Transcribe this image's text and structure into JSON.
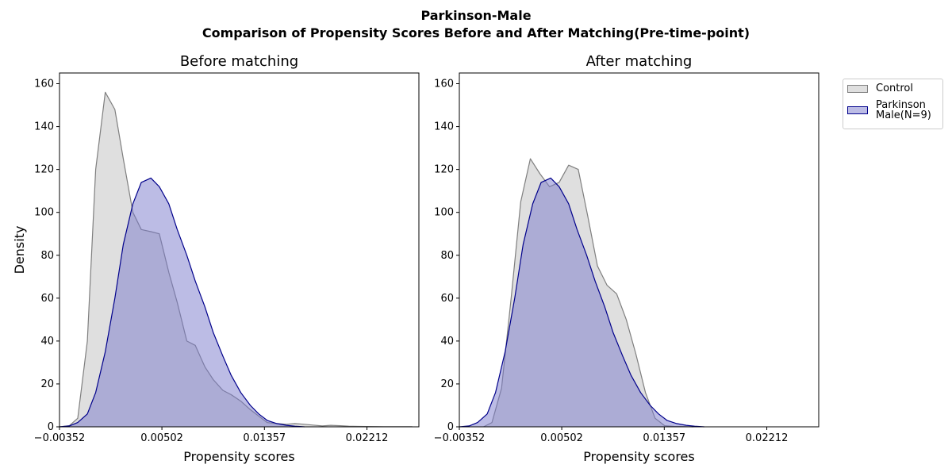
{
  "suptitle": [
    "Parkinson-Male",
    "Comparison of Propensity Scores Before and After Matching(Pre-time-point)"
  ],
  "colors": {
    "control_fill": "#c0c0c0",
    "control_line": "#7f7f7f",
    "treated_fill": "#7a7acb",
    "treated_line": "#00008b"
  },
  "legend": {
    "entries": [
      "Control",
      "Parkinson Male(N=9)"
    ],
    "lines": [
      [
        "Control"
      ],
      [
        "Parkinson",
        "Male(N=9)"
      ]
    ]
  },
  "chart_data": [
    {
      "type": "area",
      "title": "Before matching",
      "xlabel": "Propensity scores",
      "ylabel": "Density",
      "xlim": [
        -0.00352,
        0.02645
      ],
      "ylim": [
        0,
        165
      ],
      "xticks": [
        "-0.00352",
        "0.00502",
        "0.01357",
        "0.02212"
      ],
      "yticks": [
        0,
        20,
        40,
        60,
        80,
        100,
        120,
        140,
        160
      ],
      "series": [
        {
          "name": "Control",
          "x": [
            -0.0035,
            -0.0027,
            -0.002,
            -0.0012,
            -0.0005,
            0.0003,
            0.0011,
            0.0018,
            0.0026,
            0.0033,
            0.0041,
            0.0048,
            0.0056,
            0.0063,
            0.0071,
            0.0078,
            0.0086,
            0.0093,
            0.0101,
            0.0108,
            0.0116,
            0.0124,
            0.0131,
            0.0138,
            0.0146,
            0.0154,
            0.0161,
            0.0169,
            0.0176,
            0.0184,
            0.0191,
            0.0199,
            0.0206,
            0.0214,
            0.0221,
            0.0229,
            0.0236,
            0.0244,
            0.0251,
            0.0259
          ],
          "y": [
            0,
            0.5,
            4,
            40,
            120,
            156,
            148,
            125,
            100,
            92,
            91,
            90,
            72,
            58,
            40,
            38,
            28,
            22,
            17,
            15,
            12,
            8,
            5,
            2,
            1.5,
            1.2,
            1.5,
            1.2,
            0.8,
            0.4,
            0.7,
            0.5,
            0.3,
            0.2,
            0.15,
            0.1,
            0.08,
            0.05,
            0.03,
            0.02
          ]
        },
        {
          "name": "Parkinson Male(N=9)",
          "x": [
            -0.0035,
            -0.0027,
            -0.002,
            -0.0012,
            -0.0005,
            0.0003,
            0.0011,
            0.0018,
            0.0026,
            0.0033,
            0.0041,
            0.0048,
            0.0056,
            0.0063,
            0.0071,
            0.0078,
            0.0086,
            0.0093,
            0.0101,
            0.0108,
            0.0116,
            0.0124,
            0.0131,
            0.0138,
            0.0146,
            0.0154,
            0.0161,
            0.0169
          ],
          "y": [
            0,
            0.4,
            2,
            6,
            16,
            35,
            60,
            85,
            104,
            114,
            116,
            112,
            104,
            92,
            80,
            68,
            56,
            44,
            33,
            24,
            16,
            10,
            6,
            3,
            1.5,
            0.7,
            0.3,
            0
          ]
        }
      ]
    },
    {
      "type": "area",
      "title": "After matching",
      "xlabel": "Propensity scores",
      "ylabel": "",
      "xlim": [
        -0.00352,
        0.02645
      ],
      "ylim": [
        0,
        165
      ],
      "xticks": [
        "-0.00352",
        "0.00502",
        "0.01357",
        "0.02212"
      ],
      "yticks": [
        0,
        20,
        40,
        60,
        80,
        100,
        120,
        140,
        160
      ],
      "series": [
        {
          "name": "Control",
          "x": [
            -0.0015,
            -0.0008,
            0.0,
            0.0008,
            0.0016,
            0.0024,
            0.0032,
            0.004,
            0.0048,
            0.0056,
            0.0064,
            0.0072,
            0.008,
            0.0088,
            0.0096,
            0.0104,
            0.0112,
            0.012,
            0.0128,
            0.0136,
            0.0144,
            0.0152,
            0.016
          ],
          "y": [
            0,
            2,
            18,
            60,
            105,
            125,
            118,
            112,
            114,
            122,
            120,
            98,
            75,
            66,
            62,
            50,
            34,
            16,
            4,
            0.5,
            0.2,
            0.1,
            0
          ]
        },
        {
          "name": "Parkinson Male(N=9)",
          "x": [
            -0.0035,
            -0.0027,
            -0.002,
            -0.0012,
            -0.0005,
            0.0003,
            0.0011,
            0.0018,
            0.0026,
            0.0033,
            0.0041,
            0.0048,
            0.0056,
            0.0063,
            0.0071,
            0.0078,
            0.0086,
            0.0093,
            0.0101,
            0.0108,
            0.0116,
            0.0124,
            0.0131,
            0.0138,
            0.0146,
            0.0154,
            0.0161,
            0.0169
          ],
          "y": [
            0,
            0.4,
            2,
            6,
            16,
            35,
            60,
            85,
            104,
            114,
            116,
            112,
            104,
            92,
            80,
            68,
            56,
            44,
            33,
            24,
            16,
            10,
            6,
            3,
            1.5,
            0.7,
            0.3,
            0
          ]
        }
      ]
    }
  ]
}
